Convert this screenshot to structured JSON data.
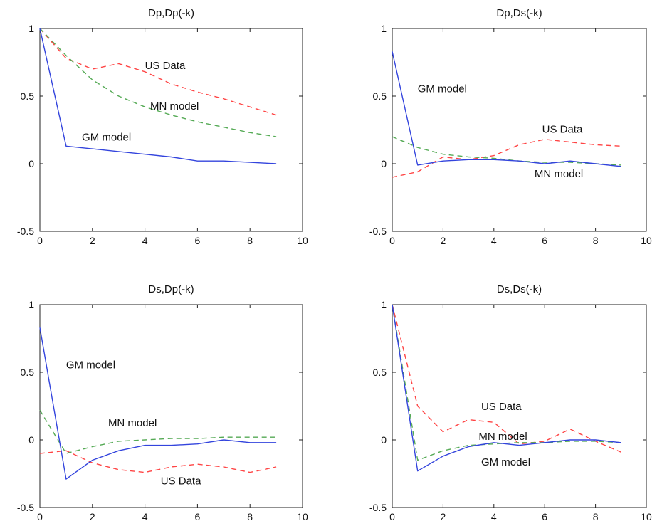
{
  "chart_data": [
    {
      "type": "line",
      "title": "Dp,Dp(-k)",
      "xlim": [
        0,
        10
      ],
      "ylim": [
        -0.5,
        1
      ],
      "xticks": [
        "0",
        "2",
        "4",
        "6",
        "8",
        "10"
      ],
      "yticks": [
        "-0.5",
        "0",
        "0.5",
        "1"
      ],
      "x": [
        0,
        1,
        2,
        3,
        4,
        5,
        6,
        7,
        8,
        9
      ],
      "series": [
        {
          "name": "US Data",
          "color": "#ff4444",
          "dash": "dashed",
          "values": [
            1.0,
            0.78,
            0.7,
            0.74,
            0.68,
            0.59,
            0.53,
            0.48,
            0.42,
            0.36
          ]
        },
        {
          "name": "MN model",
          "color": "#55aa55",
          "dash": "dashed",
          "values": [
            1.0,
            0.8,
            0.62,
            0.5,
            0.42,
            0.36,
            0.31,
            0.27,
            0.23,
            0.2
          ]
        },
        {
          "name": "GM model",
          "color": "#3344dd",
          "dash": "solid",
          "values": [
            1.0,
            0.13,
            0.11,
            0.09,
            0.07,
            0.05,
            0.02,
            0.02,
            0.01,
            0.0
          ]
        }
      ],
      "annotations": [
        {
          "text": "US Data",
          "x": 4.0,
          "y": 0.7
        },
        {
          "text": "MN model",
          "x": 4.2,
          "y": 0.4
        },
        {
          "text": "GM model",
          "x": 1.6,
          "y": 0.17
        }
      ]
    },
    {
      "type": "line",
      "title": "Dp,Ds(-k)",
      "xlim": [
        0,
        10
      ],
      "ylim": [
        -0.5,
        1
      ],
      "xticks": [
        "0",
        "2",
        "4",
        "6",
        "8",
        "10"
      ],
      "yticks": [
        "-0.5",
        "0",
        "0.5",
        "1"
      ],
      "x": [
        0,
        1,
        2,
        3,
        4,
        5,
        6,
        7,
        8,
        9
      ],
      "series": [
        {
          "name": "US Data",
          "color": "#ff4444",
          "dash": "dashed",
          "values": [
            -0.1,
            -0.06,
            0.05,
            0.03,
            0.06,
            0.14,
            0.18,
            0.16,
            0.14,
            0.13
          ]
        },
        {
          "name": "MN model",
          "color": "#55aa55",
          "dash": "dashed",
          "values": [
            0.2,
            0.12,
            0.07,
            0.05,
            0.04,
            0.02,
            0.01,
            0.01,
            0.0,
            -0.01
          ]
        },
        {
          "name": "GM model",
          "color": "#3344dd",
          "dash": "solid",
          "values": [
            0.83,
            -0.01,
            0.02,
            0.03,
            0.03,
            0.02,
            0.0,
            0.02,
            0.0,
            -0.02
          ]
        }
      ],
      "annotations": [
        {
          "text": "GM model",
          "x": 1.0,
          "y": 0.53
        },
        {
          "text": "US Data",
          "x": 5.9,
          "y": 0.23
        },
        {
          "text": "MN model",
          "x": 5.6,
          "y": -0.1
        }
      ]
    },
    {
      "type": "line",
      "title": "Ds,Dp(-k)",
      "xlim": [
        0,
        10
      ],
      "ylim": [
        -0.5,
        1
      ],
      "xticks": [
        "0",
        "2",
        "4",
        "6",
        "8",
        "10"
      ],
      "yticks": [
        "-0.5",
        "0",
        "0.5",
        "1"
      ],
      "x": [
        0,
        1,
        2,
        3,
        4,
        5,
        6,
        7,
        8,
        9
      ],
      "series": [
        {
          "name": "US Data",
          "color": "#ff4444",
          "dash": "dashed",
          "values": [
            -0.1,
            -0.08,
            -0.17,
            -0.22,
            -0.24,
            -0.2,
            -0.18,
            -0.2,
            -0.24,
            -0.2
          ]
        },
        {
          "name": "MN model",
          "color": "#55aa55",
          "dash": "dashed",
          "values": [
            0.22,
            -0.1,
            -0.05,
            -0.01,
            0.0,
            0.01,
            0.01,
            0.02,
            0.02,
            0.02
          ]
        },
        {
          "name": "GM model",
          "color": "#3344dd",
          "dash": "solid",
          "values": [
            0.83,
            -0.29,
            -0.15,
            -0.08,
            -0.04,
            -0.04,
            -0.03,
            0.0,
            -0.02,
            -0.02
          ]
        }
      ],
      "annotations": [
        {
          "text": "GM model",
          "x": 1.0,
          "y": 0.53
        },
        {
          "text": "MN model",
          "x": 2.6,
          "y": 0.1
        },
        {
          "text": "US Data",
          "x": 4.6,
          "y": -0.33
        }
      ]
    },
    {
      "type": "line",
      "title": "Ds,Ds(-k)",
      "xlim": [
        0,
        10
      ],
      "ylim": [
        -0.5,
        1
      ],
      "xticks": [
        "0",
        "2",
        "4",
        "6",
        "8",
        "10"
      ],
      "yticks": [
        "-0.5",
        "0",
        "0.5",
        "1"
      ],
      "x": [
        0,
        1,
        2,
        3,
        4,
        5,
        6,
        7,
        8,
        9
      ],
      "series": [
        {
          "name": "US Data",
          "color": "#ff4444",
          "dash": "dashed",
          "values": [
            1.0,
            0.25,
            0.06,
            0.15,
            0.13,
            -0.03,
            -0.01,
            0.08,
            -0.01,
            -0.09
          ]
        },
        {
          "name": "MN model",
          "color": "#55aa55",
          "dash": "dashed",
          "values": [
            1.0,
            -0.15,
            -0.08,
            -0.04,
            -0.03,
            -0.02,
            -0.02,
            -0.01,
            -0.01,
            -0.02
          ]
        },
        {
          "name": "GM model",
          "color": "#3344dd",
          "dash": "solid",
          "values": [
            1.0,
            -0.23,
            -0.12,
            -0.05,
            -0.02,
            -0.04,
            -0.02,
            0.0,
            0.0,
            -0.02
          ]
        }
      ],
      "annotations": [
        {
          "text": "US Data",
          "x": 3.5,
          "y": 0.22
        },
        {
          "text": "MN model",
          "x": 3.4,
          "y": 0.0
        },
        {
          "text": "GM model",
          "x": 3.5,
          "y": -0.19
        }
      ]
    }
  ]
}
